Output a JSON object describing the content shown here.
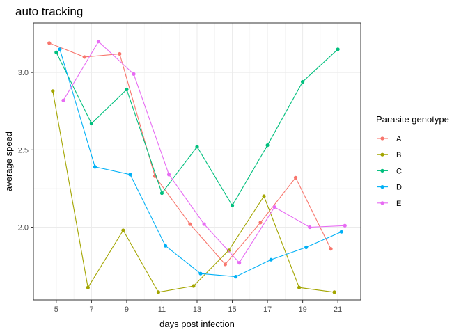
{
  "chart_data": {
    "type": "line",
    "title": "auto tracking",
    "xlabel": "days post infection",
    "ylabel": "average speed",
    "xlim": [
      3.7,
      22.3
    ],
    "ylim": [
      1.53,
      3.32
    ],
    "x_ticks": [
      5,
      7,
      9,
      11,
      13,
      15,
      17,
      19,
      21
    ],
    "y_ticks": [
      2.0,
      2.5,
      3.0
    ],
    "y_tick_labels": [
      "2.0",
      "2.5",
      "3.0"
    ],
    "grid": true,
    "legend": {
      "title": "Parasite genotype",
      "placement": "right"
    },
    "series": [
      {
        "name": "A",
        "color": "#F8766D",
        "x": [
          4.6,
          6.6,
          8.6,
          10.6,
          12.6,
          14.6,
          16.6,
          18.6,
          20.6
        ],
        "y": [
          3.19,
          3.1,
          3.12,
          2.33,
          2.02,
          1.76,
          2.03,
          2.32,
          1.86
        ]
      },
      {
        "name": "B",
        "color": "#A3A500",
        "x": [
          4.8,
          6.8,
          8.8,
          10.8,
          12.8,
          14.8,
          16.8,
          18.8,
          20.8
        ],
        "y": [
          2.88,
          1.61,
          1.98,
          1.58,
          1.62,
          1.85,
          2.2,
          1.61,
          1.58
        ]
      },
      {
        "name": "C",
        "color": "#00BF7D",
        "x": [
          5.0,
          7.0,
          9.0,
          11.0,
          13.0,
          15.0,
          17.0,
          19.0,
          21.0
        ],
        "y": [
          3.13,
          2.67,
          2.89,
          2.22,
          2.52,
          2.14,
          2.53,
          2.94,
          3.15
        ]
      },
      {
        "name": "D",
        "color": "#00B0F6",
        "x": [
          5.2,
          7.2,
          9.2,
          11.2,
          13.2,
          15.2,
          17.2,
          19.2,
          21.2
        ],
        "y": [
          3.15,
          2.39,
          2.34,
          1.88,
          1.7,
          1.68,
          1.79,
          1.87,
          1.97
        ]
      },
      {
        "name": "E",
        "color": "#E76BF3",
        "x": [
          5.4,
          7.4,
          9.4,
          11.4,
          13.4,
          15.4,
          17.4,
          19.4,
          21.4
        ],
        "y": [
          2.82,
          3.2,
          2.99,
          2.34,
          2.02,
          1.77,
          2.13,
          2.0,
          2.01
        ]
      }
    ]
  }
}
